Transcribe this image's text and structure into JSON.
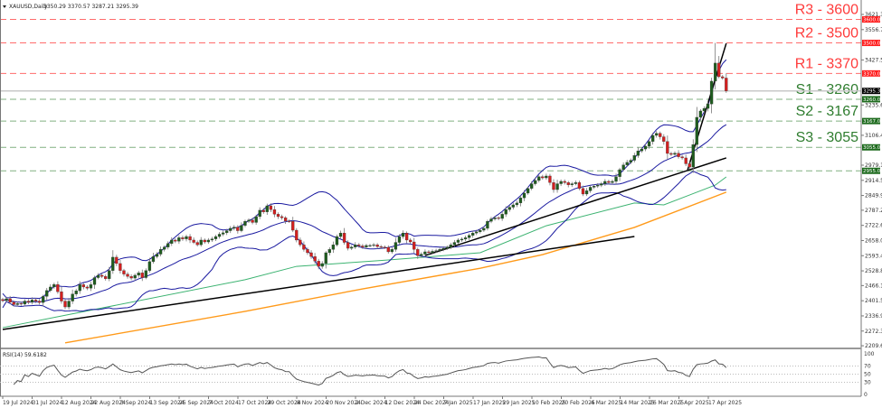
{
  "header": {
    "symbol": "XAUUSD,Daily",
    "ohlc": "3350.29 3370.57 3287.21 3295.39"
  },
  "rsi_label": "RSI(14) 59.6182",
  "colors": {
    "bull": "#1e5c1e",
    "bear": "#d41f1f",
    "resistance": "#ff3b3b",
    "support": "#2f7d2f",
    "bollinger": "#1a1aa0",
    "ma_green": "#3cb371",
    "ma_orange": "#ff9a1a",
    "trend": "#000000",
    "rsi": "#555555"
  },
  "chart_data": {
    "type": "candlestick",
    "title": "XAUUSD,Daily",
    "ylim": [
      2209.6,
      3621.3
    ],
    "y_ticks": [
      "3621.30",
      "3556.70",
      "3427.50",
      "3235.60",
      "3106.40",
      "2979.10",
      "2914.50",
      "2849.90",
      "2787.20",
      "2722.60",
      "2658.00",
      "2593.40",
      "2528.80",
      "2466.10",
      "2401.50",
      "2336.90",
      "2272.30",
      "2209.60"
    ],
    "x_labels": [
      "19 Jul 2024",
      "31 Jul 2024",
      "12 Aug 2024",
      "22 Aug 2024",
      "3 Sep 2024",
      "13 Sep 2024",
      "25 Sep 2024",
      "7 Oct 2024",
      "17 Oct 2024",
      "29 Oct 2024",
      "8 Nov 2024",
      "20 Nov 2024",
      "2 Dec 2024",
      "12 Dec 2024",
      "24 Dec 2024",
      "7 Jan 2025",
      "17 Jan 2025",
      "29 Jan 2025",
      "10 Feb 2025",
      "20 Feb 2025",
      "4 Mar 2025",
      "14 Mar 2025",
      "26 Mar 2025",
      "7 Apr 2025",
      "17 Apr 2025"
    ],
    "closes": [
      2402,
      2410,
      2395,
      2385,
      2390,
      2387,
      2400,
      2395,
      2405,
      2400,
      2394,
      2420,
      2445,
      2460,
      2471,
      2440,
      2400,
      2375,
      2400,
      2430,
      2444,
      2470,
      2460,
      2455,
      2470,
      2500,
      2510,
      2505,
      2495,
      2530,
      2587,
      2560,
      2530,
      2515,
      2505,
      2498,
      2510,
      2520,
      2500,
      2530,
      2568,
      2590,
      2600,
      2620,
      2630,
      2645,
      2660,
      2655,
      2670,
      2665,
      2675,
      2660,
      2650,
      2640,
      2660,
      2652,
      2660,
      2665,
      2675,
      2685,
      2691,
      2700,
      2710,
      2715,
      2700,
      2722,
      2740,
      2745,
      2735,
      2760,
      2787,
      2780,
      2806,
      2790,
      2770,
      2760,
      2755,
      2741,
      2740,
      2702,
      2660,
      2640,
      2620,
      2606,
      2590,
      2570,
      2548,
      2560,
      2606,
      2620,
      2640,
      2675,
      2690,
      2650,
      2625,
      2630,
      2640,
      2635,
      2630,
      2637,
      2637,
      2640,
      2632,
      2630,
      2629,
      2610,
      2620,
      2650,
      2675,
      2690,
      2660,
      2652,
      2620,
      2594,
      2600,
      2610,
      2606,
      2612,
      2615,
      2620,
      2625,
      2630,
      2640,
      2650,
      2660,
      2664,
      2670,
      2680,
      2690,
      2695,
      2702,
      2710,
      2740,
      2750,
      2755,
      2752,
      2770,
      2790,
      2800,
      2810,
      2818,
      2840,
      2860,
      2880,
      2900,
      2914,
      2930,
      2925,
      2933,
      2905,
      2875,
      2900,
      2910,
      2905,
      2895,
      2900,
      2905,
      2880,
      2856,
      2870,
      2885,
      2890,
      2894,
      2900,
      2910,
      2905,
      2910,
      2930,
      2960,
      2980,
      2991,
      3000,
      3020,
      3040,
      3048,
      3060,
      3080,
      3106,
      3115,
      3100,
      3080,
      3029,
      3025,
      3030,
      3015,
      3010,
      2985,
      2971,
      3067,
      3183,
      3210,
      3221,
      3240,
      3337,
      3414,
      3356,
      3350.29,
      3295.39
    ],
    "last_candle": {
      "open": 3350.29,
      "high": 3370.57,
      "low": 3287.21,
      "close": 3295.39
    },
    "levels": [
      {
        "label": "R3 - 3600",
        "value": 3600,
        "tag": "3600.00",
        "kind": "resistance"
      },
      {
        "label": "R2 - 3500",
        "value": 3500,
        "tag": "3500.00",
        "kind": "resistance"
      },
      {
        "label": "R1 - 3370",
        "value": 3370,
        "tag": "3370.00",
        "kind": "resistance"
      },
      {
        "label": "S1 - 3260",
        "value": 3260,
        "tag": "3260.00",
        "kind": "support"
      },
      {
        "label": "S2 - 3167",
        "value": 3167,
        "tag": "3167.00",
        "kind": "support"
      },
      {
        "label": "S3 - 3055",
        "value": 3055,
        "tag": "3055.00",
        "kind": "support"
      },
      {
        "label": "",
        "value": 2955,
        "tag": "2955.00",
        "kind": "support"
      }
    ],
    "current_price": {
      "value": 3295.39,
      "tag": "3295.39"
    },
    "ma_green": [
      [
        0,
        2287
      ],
      [
        66,
        2491
      ],
      [
        80,
        2548
      ],
      [
        105,
        2575
      ],
      [
        130,
        2606
      ],
      [
        148,
        2721
      ],
      [
        172,
        2818
      ],
      [
        180,
        2810
      ],
      [
        194,
        2894
      ],
      [
        197,
        2929
      ]
    ],
    "ma_orange": [
      [
        17,
        2222
      ],
      [
        66,
        2356
      ],
      [
        98,
        2452
      ],
      [
        130,
        2540
      ],
      [
        147,
        2598
      ],
      [
        172,
        2714
      ],
      [
        197,
        2864
      ]
    ],
    "bollinger_period": 20,
    "trendlines": [
      [
        [
          0,
          2279
        ],
        [
          172,
          2675
        ]
      ],
      [
        [
          115,
          2594
        ],
        [
          197,
          3010
        ]
      ],
      [
        [
          186.5,
          2960
        ],
        [
          197,
          3498
        ]
      ]
    ],
    "rsi": {
      "period": 14,
      "last": 59.6182,
      "levels": [
        "100",
        "70",
        "50",
        "30",
        "0"
      ]
    }
  }
}
